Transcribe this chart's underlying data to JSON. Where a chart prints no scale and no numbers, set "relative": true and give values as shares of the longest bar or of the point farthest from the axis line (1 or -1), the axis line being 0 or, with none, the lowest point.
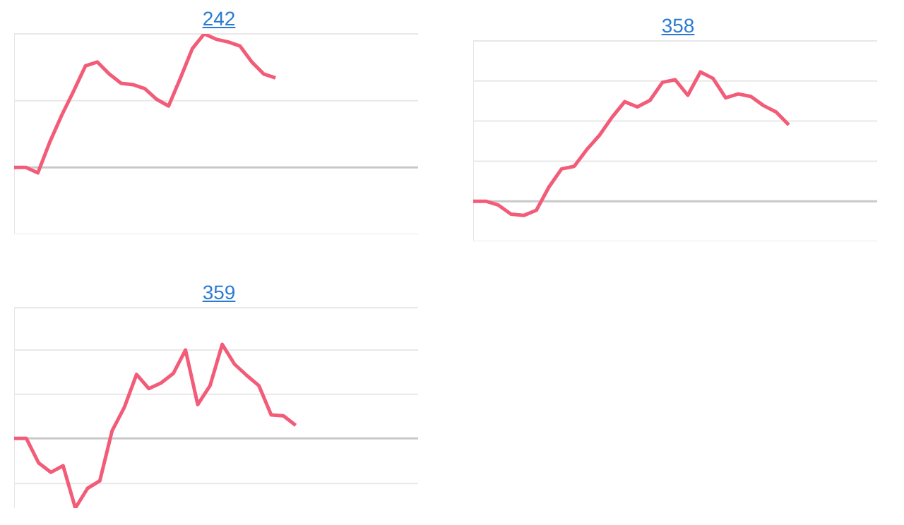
{
  "chart_data": [
    {
      "type": "line",
      "title": "242",
      "relative": true,
      "marker": "none",
      "line_style": "solid",
      "legend": false,
      "ref_lines": [
        {
          "axis": "y",
          "value": 0,
          "color": "#c8c8c8"
        },
        {
          "axis": "y",
          "value": 0.5,
          "color": "#e8e8e8"
        },
        {
          "axis": "y",
          "value": 1,
          "color": "#e8e8e8"
        },
        {
          "axis": "y",
          "value": -0.5,
          "color": "#e8e8e8"
        }
      ],
      "categories": [
        null,
        null,
        null,
        null,
        null,
        null,
        null,
        null,
        null,
        null,
        null,
        null,
        null,
        null,
        null,
        null,
        null,
        null,
        null,
        null,
        null,
        null,
        null,
        null,
        null,
        null,
        null,
        null,
        null,
        null,
        null,
        null,
        null,
        null,
        null
      ],
      "series": [
        {
          "color": "#f25c78",
          "values": [
            0,
            0,
            -0.04,
            0.19,
            0.39,
            0.57,
            0.76,
            0.79,
            0.7,
            0.63,
            0.62,
            0.59,
            0.51,
            0.46,
            0.67,
            0.89,
            1,
            0.96,
            0.94,
            0.91,
            0.79,
            0.7,
            0.67,
            null,
            null,
            null,
            null,
            null,
            null,
            null,
            null,
            null,
            null,
            null,
            null
          ]
        }
      ]
    },
    {
      "type": "line",
      "title": "358",
      "relative": true,
      "marker": "none",
      "line_style": "solid",
      "legend": false,
      "ref_lines": [
        {
          "axis": "y",
          "value": 0,
          "color": "#c8c8c8"
        },
        {
          "axis": "y",
          "value": 0.31,
          "color": "#e8e8e8"
        },
        {
          "axis": "y",
          "value": 0.62,
          "color": "#e8e8e8"
        },
        {
          "axis": "y",
          "value": 0.93,
          "color": "#e8e8e8"
        },
        {
          "axis": "y",
          "value": 1.24,
          "color": "#e8e8e8"
        },
        {
          "axis": "y",
          "value": -0.31,
          "color": "#e8e8e8"
        }
      ],
      "categories": [
        null,
        null,
        null,
        null,
        null,
        null,
        null,
        null,
        null,
        null,
        null,
        null,
        null,
        null,
        null,
        null,
        null,
        null,
        null,
        null,
        null,
        null,
        null,
        null,
        null,
        null,
        null,
        null,
        null,
        null,
        null,
        null,
        null
      ],
      "series": [
        {
          "color": "#f25c78",
          "values": [
            0,
            0,
            -0.03,
            -0.1,
            -0.11,
            -0.07,
            0.11,
            0.25,
            0.27,
            0.4,
            0.51,
            0.65,
            0.77,
            0.73,
            0.78,
            0.92,
            0.94,
            0.82,
            1,
            0.95,
            0.8,
            0.83,
            0.81,
            0.74,
            0.69,
            0.59,
            null,
            null,
            null,
            null,
            null,
            null,
            null
          ]
        }
      ]
    },
    {
      "type": "line",
      "title": "359",
      "relative": true,
      "marker": "none",
      "line_style": "solid",
      "legend": false,
      "ref_lines": [
        {
          "axis": "y",
          "value": 0,
          "color": "#c8c8c8"
        },
        {
          "axis": "y",
          "value": 0.47,
          "color": "#e8e8e8"
        },
        {
          "axis": "y",
          "value": 0.94,
          "color": "#e8e8e8"
        },
        {
          "axis": "y",
          "value": 1.39,
          "color": "#e8e8e8"
        },
        {
          "axis": "y",
          "value": -0.48,
          "color": "#e8e8e8"
        }
      ],
      "categories": [
        null,
        null,
        null,
        null,
        null,
        null,
        null,
        null,
        null,
        null,
        null,
        null,
        null,
        null,
        null,
        null,
        null,
        null,
        null,
        null,
        null,
        null,
        null,
        null,
        null,
        null,
        null,
        null,
        null,
        null,
        null,
        null,
        null,
        null
      ],
      "series": [
        {
          "color": "#f25c78",
          "values": [
            0,
            0,
            -0.26,
            -0.36,
            -0.29,
            -0.74,
            -0.53,
            -0.45,
            0.08,
            0.33,
            0.68,
            0.53,
            0.59,
            0.69,
            0.94,
            0.36,
            0.56,
            1,
            0.79,
            0.67,
            0.56,
            0.25,
            0.24,
            0.14,
            null,
            null,
            null,
            null,
            null,
            null,
            null,
            null,
            null,
            null
          ]
        }
      ]
    }
  ]
}
